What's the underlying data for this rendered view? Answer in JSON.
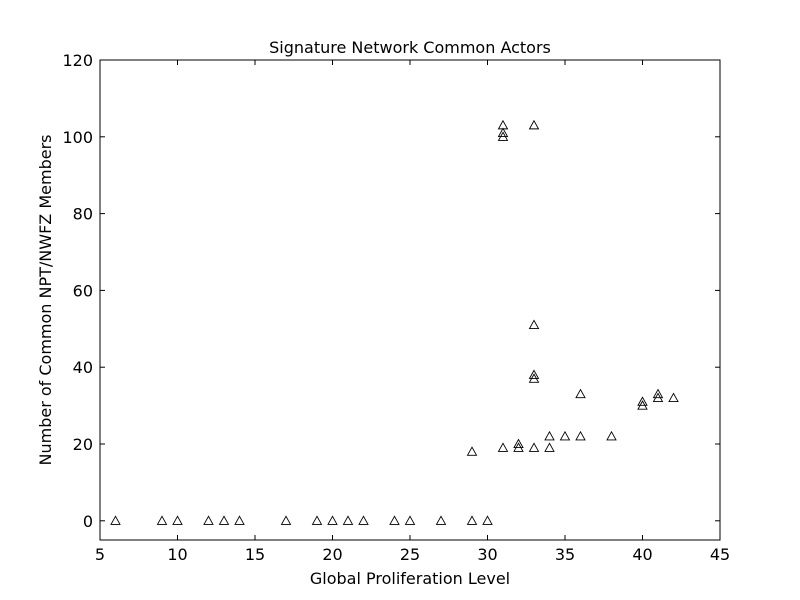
{
  "chart_data": {
    "type": "scatter",
    "title": "Signature Network Common Actors",
    "xlabel": "Global Proliferation Level",
    "ylabel": "Number of Common NPT/NWFZ Members",
    "xlim": [
      5,
      45
    ],
    "ylim": [
      -5,
      120
    ],
    "xticks": [
      5,
      10,
      15,
      20,
      25,
      30,
      35,
      40,
      45
    ],
    "yticks": [
      0,
      20,
      40,
      60,
      80,
      100,
      120
    ],
    "grid": false,
    "marker": "triangle-open",
    "marker_color": "#000000",
    "series": [
      {
        "points": [
          [
            6,
            0
          ],
          [
            9,
            0
          ],
          [
            10,
            0
          ],
          [
            12,
            0
          ],
          [
            13,
            0
          ],
          [
            14,
            0
          ],
          [
            17,
            0
          ],
          [
            19,
            0
          ],
          [
            20,
            0
          ],
          [
            21,
            0
          ],
          [
            22,
            0
          ],
          [
            24,
            0
          ],
          [
            25,
            0
          ],
          [
            27,
            0
          ],
          [
            29,
            0
          ],
          [
            30,
            0
          ],
          [
            29,
            18
          ],
          [
            31,
            19
          ],
          [
            31,
            100
          ],
          [
            31,
            101
          ],
          [
            31,
            103
          ],
          [
            32,
            19
          ],
          [
            32,
            20
          ],
          [
            33,
            19
          ],
          [
            33,
            37
          ],
          [
            33,
            38
          ],
          [
            33,
            51
          ],
          [
            33,
            103
          ],
          [
            34,
            19
          ],
          [
            34,
            22
          ],
          [
            35,
            22
          ],
          [
            36,
            22
          ],
          [
            36,
            33
          ],
          [
            38,
            22
          ],
          [
            40,
            30
          ],
          [
            40,
            31
          ],
          [
            41,
            32
          ],
          [
            41,
            33
          ],
          [
            42,
            32
          ]
        ]
      }
    ]
  }
}
